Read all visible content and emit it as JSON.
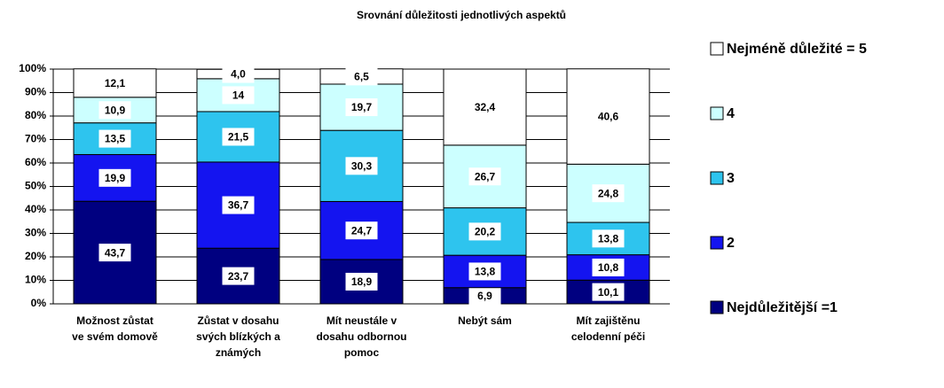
{
  "chart_data": {
    "type": "stacked_bar",
    "title": "Srovnání důležitosti jednotlivých aspektů",
    "categories": [
      "Možnost zůstat ve svém domově",
      "Zůstat v dosahu svých blízkých a známých",
      "Mít neustále v dosahu odbornou pomoc",
      "Nebýt sám",
      "Mít zajištěnu celodenní péči"
    ],
    "series": [
      {
        "name": "Nejdůležitější =1",
        "color": "#000080",
        "values": [
          43.7,
          23.7,
          18.9,
          6.9,
          10.1
        ],
        "value_labels": [
          "43,7",
          "23,7",
          "18,9",
          "6,9",
          "10,1"
        ]
      },
      {
        "name": "2",
        "color": "#1414f0",
        "values": [
          19.9,
          36.7,
          24.7,
          13.8,
          10.8
        ],
        "value_labels": [
          "19,9",
          "36,7",
          "24,7",
          "13,8",
          "10,8"
        ]
      },
      {
        "name": "3",
        "color": "#2ec4ee",
        "values": [
          13.5,
          21.5,
          30.3,
          20.2,
          13.8
        ],
        "value_labels": [
          "13,5",
          "21,5",
          "30,3",
          "20,2",
          "13,8"
        ]
      },
      {
        "name": "4",
        "color": "#ccffff",
        "values": [
          10.9,
          14,
          19.7,
          26.7,
          24.8
        ],
        "value_labels": [
          "10,9",
          "14",
          "19,7",
          "26,7",
          "24,8"
        ]
      },
      {
        "name": "Nejméně důležité = 5",
        "color": "#ffffff",
        "values": [
          12.1,
          4.0,
          6.5,
          32.4,
          40.6
        ],
        "value_labels": [
          "12,1",
          "4,0",
          "6,5",
          "32,4",
          "40,6"
        ]
      }
    ],
    "ylim": [
      0,
      100
    ],
    "yticks": [
      {
        "value": 0,
        "label": "0%"
      },
      {
        "value": 10,
        "label": "10%"
      },
      {
        "value": 20,
        "label": "20%"
      },
      {
        "value": 30,
        "label": "30%"
      },
      {
        "value": 40,
        "label": "40%"
      },
      {
        "value": 50,
        "label": "50%"
      },
      {
        "value": 60,
        "label": "60%"
      },
      {
        "value": 70,
        "label": "70%"
      },
      {
        "value": 80,
        "label": "80%"
      },
      {
        "value": 90,
        "label": "90%"
      },
      {
        "value": 100,
        "label": "100%"
      }
    ],
    "grid": true,
    "legend": "right"
  }
}
